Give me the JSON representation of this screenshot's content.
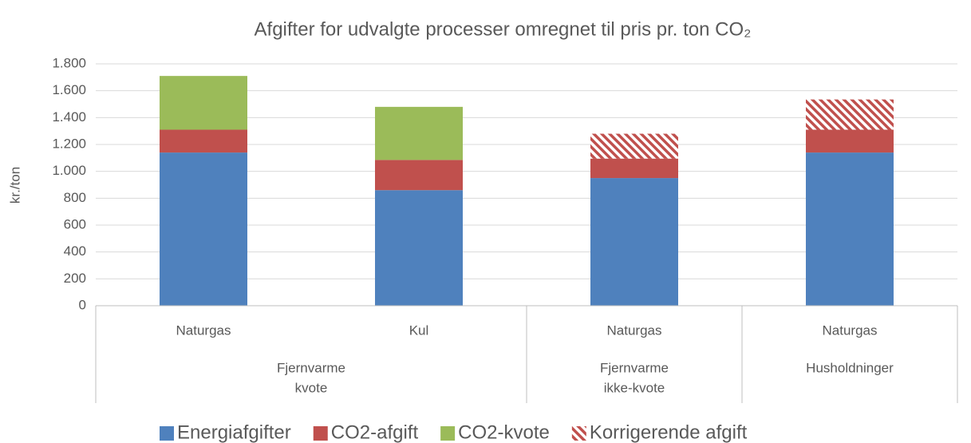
{
  "chart_data": {
    "type": "stacked_bar",
    "title": "Afgifter for udvalgte processer omregnet til pris pr. ton CO₂",
    "y_label": "kr./ton",
    "categories": [
      "Naturgas",
      "Kul",
      "Naturgas",
      "Naturgas"
    ],
    "groups": [
      {
        "lines": [
          "Fjernvarme",
          "kvote"
        ],
        "size": 2
      },
      {
        "lines": [
          "Fjernvarme",
          "ikke-kvote"
        ],
        "size": 1
      },
      {
        "lines": [
          "Husholdninger"
        ],
        "size": 1
      }
    ],
    "series": [
      {
        "name": "Energiafgifter",
        "color": "#4f81bd",
        "values": [
          1140,
          860,
          950,
          1140
        ]
      },
      {
        "name": "CO2-afgift",
        "color": "#c0504d",
        "values": [
          170,
          225,
          145,
          170
        ]
      },
      {
        "name": "CO2-kvote",
        "color": "#9bbb59",
        "values": [
          400,
          395,
          null,
          null
        ]
      },
      {
        "name": "Korrigerende afgift",
        "color": "#c0504d",
        "hatch": true,
        "values": [
          null,
          null,
          185,
          225
        ]
      }
    ],
    "ylim": [
      0,
      1800
    ],
    "yticks": [
      0,
      200,
      400,
      600,
      800,
      {
        "value": 1000,
        "label": "1.000"
      },
      {
        "value": 1200,
        "label": "1.200"
      },
      {
        "value": 1400,
        "label": "1.400"
      },
      {
        "value": 1600,
        "label": "1.600"
      },
      {
        "value": 1800,
        "label": "1.800"
      }
    ],
    "grid": true,
    "legend": "bottom"
  }
}
